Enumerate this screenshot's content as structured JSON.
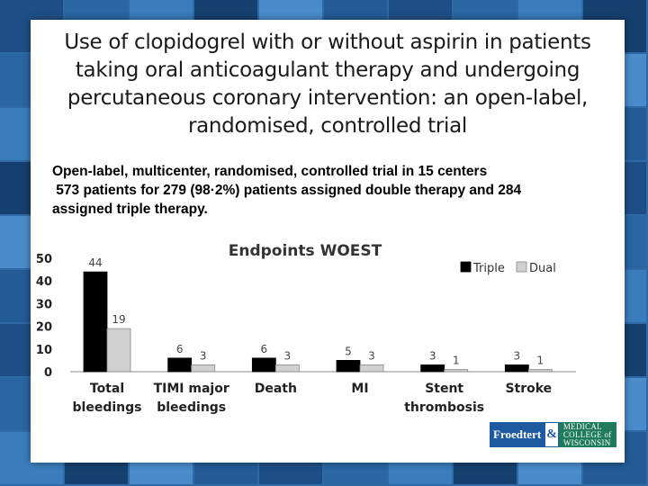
{
  "slide": {
    "title": "Use of clopidogrel with or without aspirin in patients taking oral anticoagulant therapy and undergoing percutaneous coronary intervention: an open-label, randomised, controlled trial",
    "summary_lines": [
      "Open-label, multicenter, randomised, controlled trial in 15 centers",
      " 573 patients for 279 (98·2%) patients assigned double therapy and 284",
      "assigned triple therapy."
    ]
  },
  "logo": {
    "left": "Froedtert",
    "amp": "&",
    "right_line1": "MEDICAL",
    "right_line2": "COLLEGE of",
    "right_line3": "WISCONSIN"
  },
  "colors": {
    "triple": "#000000",
    "dual": "#d0d0d0",
    "background": "#2f6aa6"
  },
  "chart_data": {
    "type": "bar",
    "title": "Endpoints WOEST",
    "categories": [
      [
        "Total",
        "bleedings"
      ],
      [
        "TIMI major",
        "bleedings"
      ],
      [
        "Death"
      ],
      [
        "MI"
      ],
      [
        "Stent",
        "thrombosis"
      ],
      [
        "Stroke"
      ]
    ],
    "series": [
      {
        "name": "Triple",
        "values": [
          44,
          6,
          6,
          5,
          3,
          3
        ]
      },
      {
        "name": "Dual",
        "values": [
          19,
          3,
          3,
          3,
          1,
          1
        ]
      }
    ],
    "ylim": [
      0,
      50
    ],
    "yticks": [
      0,
      10,
      20,
      30,
      40,
      50
    ],
    "legend_position": "top-right",
    "grid": false,
    "data_labels": true
  }
}
